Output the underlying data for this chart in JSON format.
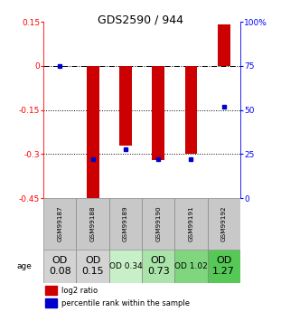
{
  "title": "GDS2590 / 944",
  "samples": [
    "GSM99187",
    "GSM99188",
    "GSM99189",
    "GSM99190",
    "GSM99191",
    "GSM99192"
  ],
  "log2_ratio": [
    0.0,
    -0.47,
    -0.27,
    -0.32,
    -0.3,
    0.14
  ],
  "percentile_rank": [
    75,
    22,
    28,
    22,
    22,
    52
  ],
  "ylim_left": [
    -0.45,
    0.15
  ],
  "ylim_right": [
    0,
    100
  ],
  "yticks_left": [
    0.15,
    0,
    -0.15,
    -0.3,
    -0.45
  ],
  "yticks_right": [
    100,
    75,
    50,
    25,
    0
  ],
  "hlines_dash": [
    0
  ],
  "hlines_dot": [
    -0.15,
    -0.3
  ],
  "bar_color": "#cc0000",
  "dot_color": "#0000cc",
  "age_labels": [
    "OD\n0.08",
    "OD\n0.15",
    "OD 0.34",
    "OD\n0.73",
    "OD 1.02",
    "OD\n1.27"
  ],
  "age_bg_colors": [
    "#d3d3d3",
    "#d3d3d3",
    "#c8f0c8",
    "#aae4aa",
    "#7fd67f",
    "#55c855"
  ],
  "age_font_sizes": [
    8,
    8,
    6.5,
    8,
    6.5,
    8
  ],
  "sample_bg_color": "#c8c8c8",
  "legend_red_label": "log2 ratio",
  "legend_blue_label": "percentile rank within the sample"
}
